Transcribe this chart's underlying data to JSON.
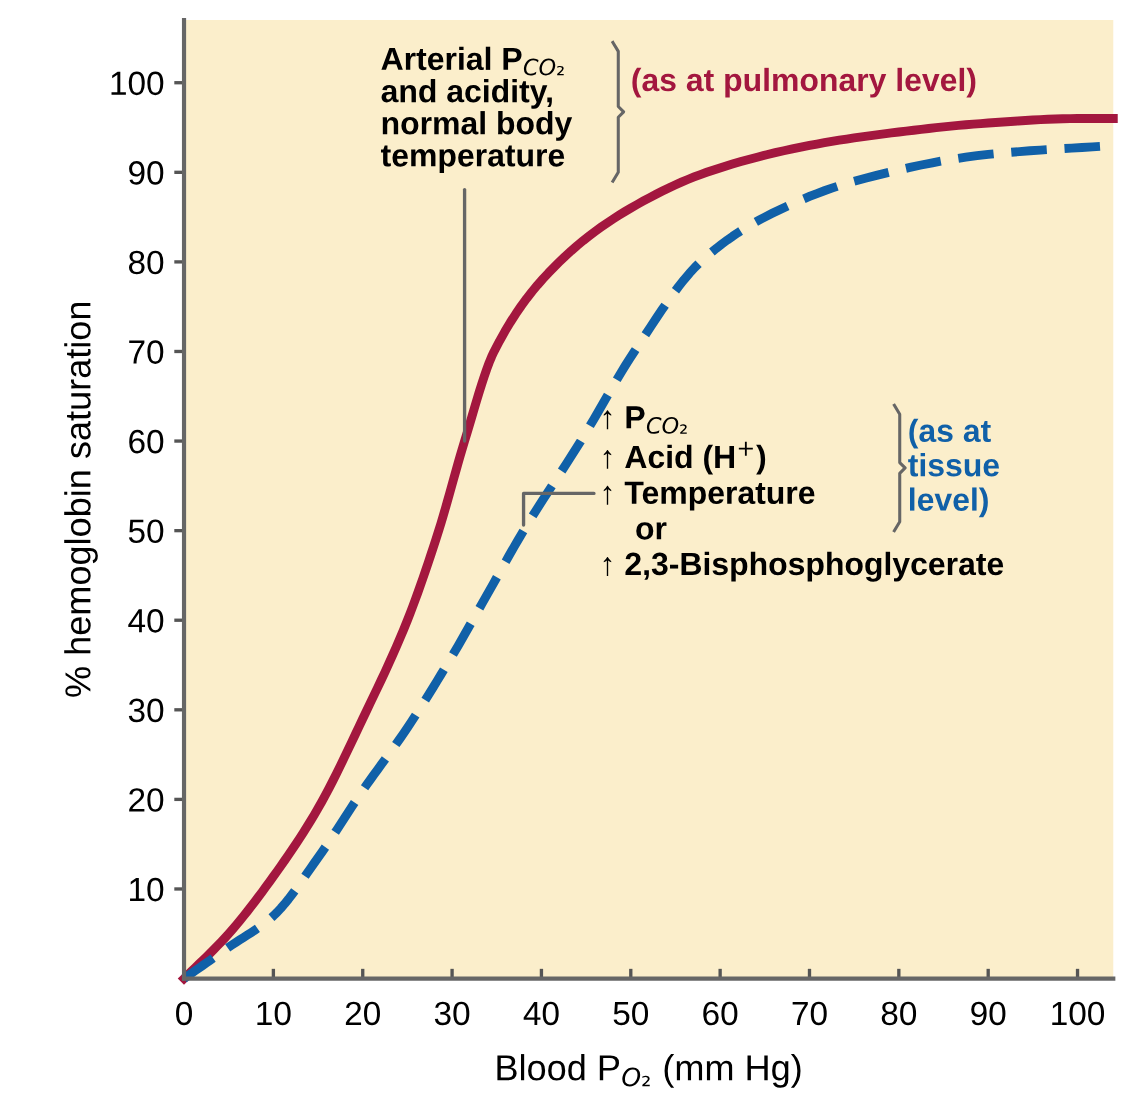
{
  "chart_data": {
    "type": "line",
    "xlabel": "Blood P$_{O₂}$ (mm Hg)",
    "ylabel": "% hemoglobin saturation",
    "xlim": [
      0,
      104
    ],
    "ylim": [
      0,
      107
    ],
    "xticks": [
      0,
      10,
      20,
      30,
      40,
      50,
      60,
      70,
      80,
      90,
      100
    ],
    "yticks": [
      10,
      20,
      30,
      40,
      50,
      60,
      70,
      80,
      90,
      100
    ],
    "grid": false,
    "legend": false,
    "marker": "none",
    "series": [
      {
        "color": "#a3173f",
        "line_style": "solid",
        "x": [
          0,
          5,
          10,
          15,
          20,
          25,
          28.5,
          31.4,
          34.7,
          42,
          50,
          58.5,
          70,
          80,
          90,
          100,
          104
        ],
        "values": [
          0,
          5,
          11.4,
          19,
          29,
          40,
          50,
          60,
          70,
          80,
          86,
          90,
          93,
          94.5,
          95.5,
          96,
          96
        ]
      },
      {
        "color": "#1060a8",
        "line_style": "dashed",
        "x": [
          0,
          5,
          10,
          15,
          20,
          25,
          30,
          34,
          38,
          44.4,
          50.4,
          57.8,
          65,
          75,
          90,
          104
        ],
        "values": [
          0,
          3.5,
          7,
          13.5,
          21,
          28,
          36,
          43,
          50,
          60,
          70,
          80,
          85,
          89,
          92,
          93
        ]
      }
    ],
    "annotations": [
      {
        "text": "Arterial P$_{CO₂}$\nand acidity,\nnormal body\ntemperature",
        "x": 31.4,
        "y": 60
      },
      "(as at pulmonary level)",
      {
        "text": "↑ P$_{CO₂}$\n↑ Acid (H$^{+}$)\n↑ Temperature\n    or\n↑ 2,3-Bisphosphoglycerate",
        "x": 38,
        "y": 50
      },
      "(as at\ntissue\nlevel)"
    ]
  }
}
